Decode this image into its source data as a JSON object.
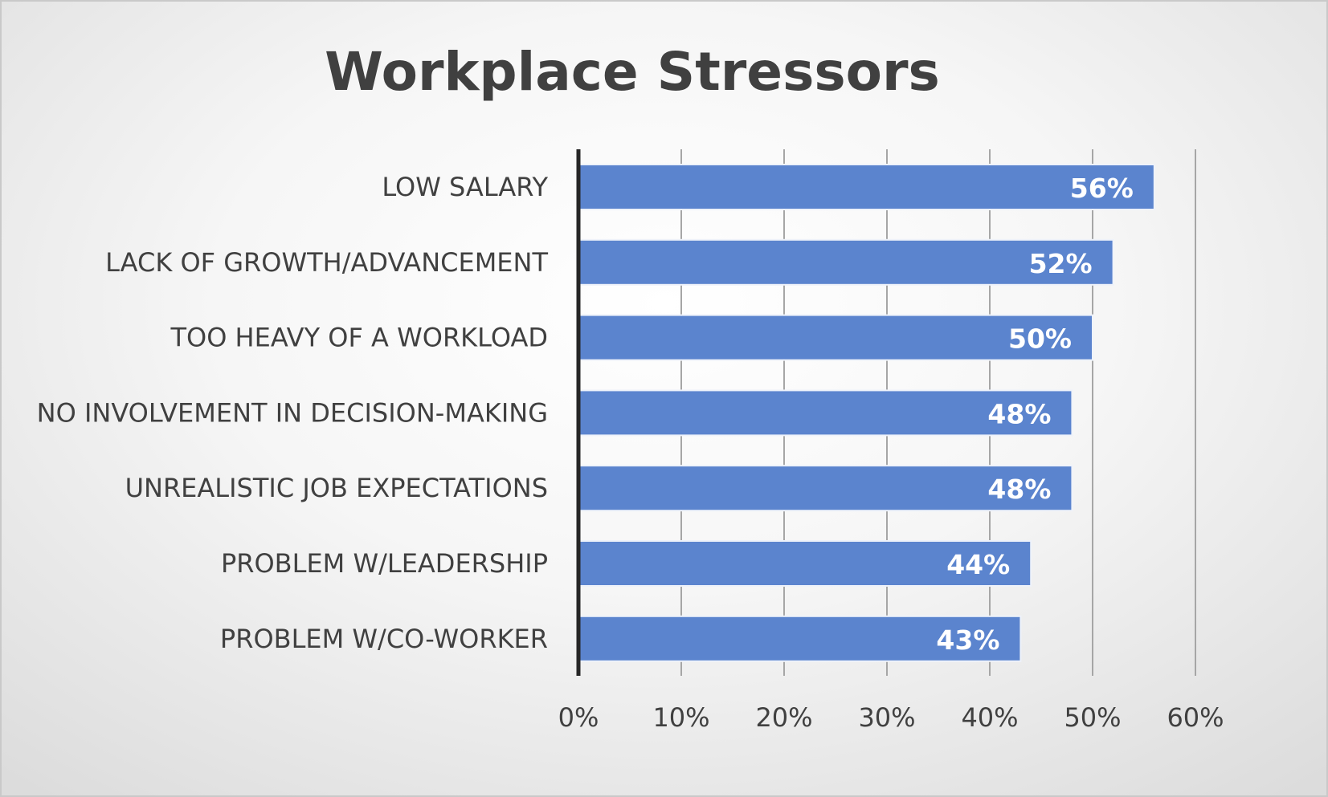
{
  "chart_data": {
    "type": "bar",
    "orientation": "horizontal",
    "title": "Workplace Stressors",
    "categories": [
      "LOW SALARY",
      "LACK OF GROWTH/ADVANCEMENT",
      "TOO HEAVY OF A WORKLOAD",
      "NO INVOLVEMENT IN DECISION-MAKING",
      "UNREALISTIC JOB EXPECTATIONS",
      "PROBLEM W/LEADERSHIP",
      "PROBLEM W/CO-WORKER"
    ],
    "values": [
      56,
      52,
      50,
      48,
      48,
      44,
      43
    ],
    "data_labels": [
      "56%",
      "52%",
      "50%",
      "48%",
      "48%",
      "44%",
      "43%"
    ],
    "x_ticks": [
      "0%",
      "10%",
      "20%",
      "30%",
      "40%",
      "50%",
      "60%"
    ],
    "xlim": [
      0,
      60
    ],
    "xlabel": "",
    "ylabel": "",
    "grid": "vertical",
    "legend": "none",
    "colors": {
      "bar": "#5b84ce",
      "bar_edge": "#eef2fa",
      "grid": "#a6a6a6",
      "axis": "#262626",
      "text": "#404040",
      "data_label": "#ffffff"
    }
  }
}
